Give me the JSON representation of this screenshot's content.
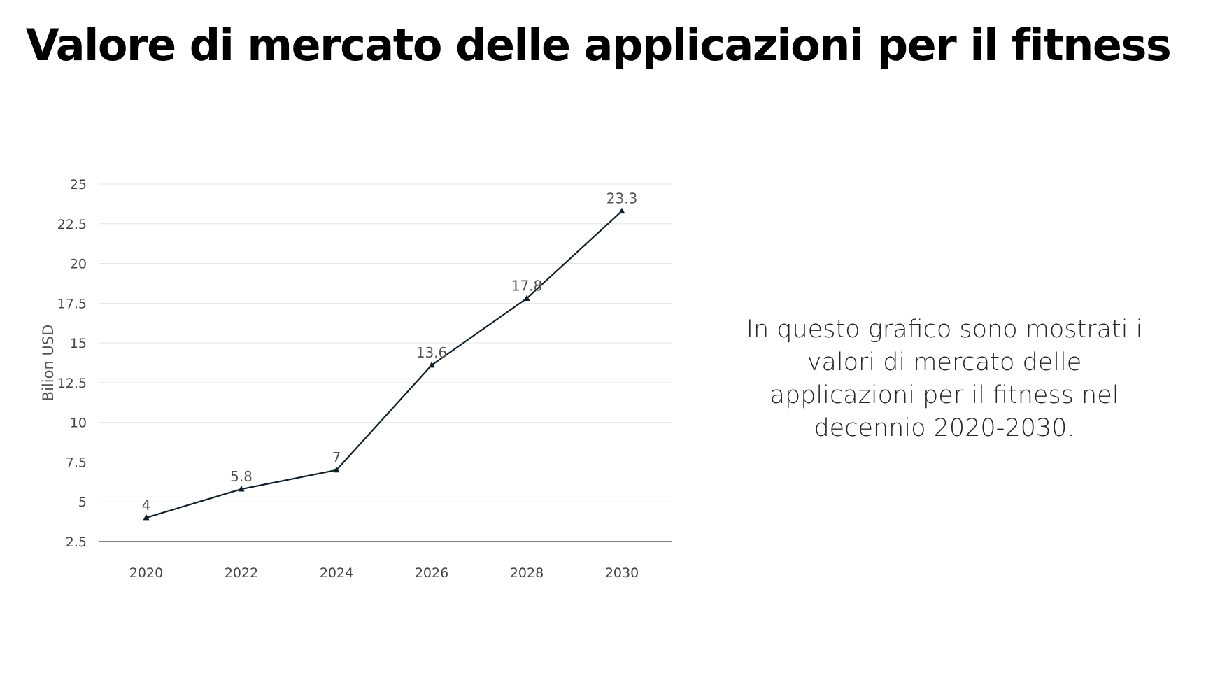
{
  "slide": {
    "title": "Valore di mercato delle applicazioni per il fitness",
    "description": "In questo grafico sono mostrati i valori di mercato delle applicazioni per il fitness nel decennio 2020-2030."
  },
  "chart_data": {
    "type": "line",
    "categories": [
      "2020",
      "2022",
      "2024",
      "2026",
      "2028",
      "2030"
    ],
    "series": [
      {
        "values": [
          4,
          5.8,
          7,
          13.6,
          17.8,
          23.3
        ],
        "labels": [
          "4",
          "5.8",
          "7",
          "13.6",
          "17.8",
          "23.3"
        ],
        "marker": "triangle",
        "color": "#0f1f2a"
      }
    ],
    "xlabel": "",
    "ylabel": "Bilion USD",
    "ylim": [
      2.5,
      25
    ],
    "yticks": [
      2.5,
      5,
      7.5,
      10,
      12.5,
      15,
      17.5,
      20,
      22.5,
      25
    ],
    "ytick_labels": [
      "2.5",
      "5",
      "7.5",
      "10",
      "12.5",
      "15",
      "17.5",
      "20",
      "22.5",
      "25"
    ],
    "grid": true,
    "legend": "none",
    "colors": {
      "line": "#0f1f2a",
      "grid": "#e6e6e6",
      "axis": "#555555"
    }
  }
}
